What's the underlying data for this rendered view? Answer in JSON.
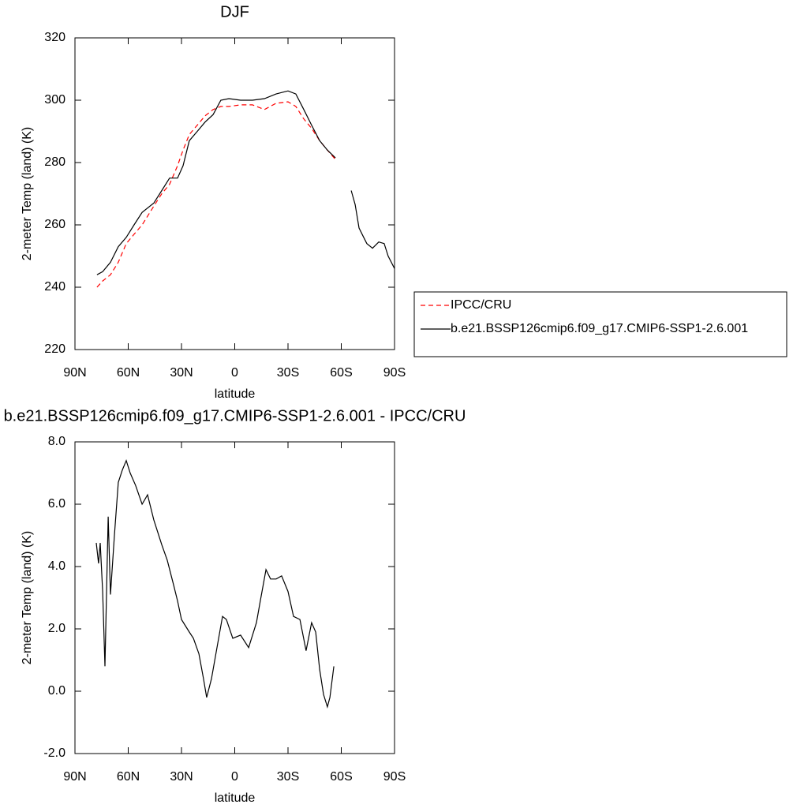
{
  "chart_data": [
    {
      "type": "line",
      "title": "DJF",
      "x_label": "latitude",
      "y_label": "2-meter Temp (land) (K)",
      "xlim": [
        90,
        -90
      ],
      "xticks": [
        {
          "value": 90,
          "label": "90N"
        },
        {
          "value": 60,
          "label": "60N"
        },
        {
          "value": 30,
          "label": "30N"
        },
        0,
        {
          "value": -30,
          "label": "30S"
        },
        {
          "value": -60,
          "label": "60S"
        },
        {
          "value": -90,
          "label": "90S"
        }
      ],
      "ylim": [
        220,
        320
      ],
      "yticks": [
        220,
        240,
        260,
        280,
        300,
        320
      ],
      "legend": "right",
      "x": [
        77.6,
        74.4,
        70,
        65.6,
        61.1,
        56.7,
        52.2,
        45.6,
        41.1,
        36.7,
        32.2,
        29.1,
        25.6,
        21.1,
        16.7,
        12.2,
        7.8,
        3.3,
        -3.3,
        -10,
        -16.7,
        -23.3,
        -30,
        -34.4,
        -38.9,
        -43.3,
        -47.8,
        -52.2,
        -56.7,
        -61,
        -65.6,
        -67.8,
        -70,
        -72.2,
        -74.4,
        -77.6,
        -81.1,
        -84.2,
        -86.4,
        -90
      ],
      "series": [
        {
          "name": "IPCC/CRU",
          "color": "#ff0000",
          "style": "dashed",
          "values": [
            240,
            242,
            244,
            248,
            254,
            257,
            260,
            266,
            270,
            273,
            279,
            284,
            289,
            292,
            295,
            297,
            298,
            298,
            298.5,
            298.5,
            297,
            299,
            299.5,
            298,
            294,
            291,
            287,
            284,
            281,
            null,
            null,
            null,
            null,
            null,
            null,
            null,
            null,
            null,
            null,
            null
          ]
        },
        {
          "name": "b.e21.BSSP126cmip6.f09_g17.CMIP6-SSP1-2.6.001",
          "color": "#000000",
          "style": "solid",
          "values": [
            244,
            245,
            248,
            253,
            256,
            260,
            264,
            267,
            271,
            275,
            275,
            279,
            287,
            290,
            293,
            295.4,
            300,
            300.5,
            300,
            300,
            300.5,
            302,
            303,
            302,
            297,
            292,
            287,
            284,
            281.5,
            null,
            271,
            266.5,
            259,
            256.5,
            254,
            252.5,
            254.5,
            254,
            250,
            246
          ]
        }
      ]
    },
    {
      "type": "line",
      "title": "b.e21.BSSP126cmip6.f09_g17.CMIP6-SSP1-2.6.001 - IPCC/CRU",
      "x_label": "latitude",
      "y_label": "2-meter Temp (land) (K)",
      "xlim": [
        90,
        -90
      ],
      "xticks": [
        {
          "value": 90,
          "label": "90N"
        },
        {
          "value": 60,
          "label": "60N"
        },
        {
          "value": 30,
          "label": "30N"
        },
        0,
        {
          "value": -30,
          "label": "30S"
        },
        {
          "value": -60,
          "label": "60S"
        },
        {
          "value": -90,
          "label": "90S"
        }
      ],
      "ylim": [
        -2,
        8
      ],
      "yticks": [
        {
          "value": -2,
          "label": "-2.0"
        },
        {
          "value": 0,
          "label": "0.0"
        },
        {
          "value": 2,
          "label": "2.0"
        },
        {
          "value": 4,
          "label": "4.0"
        },
        {
          "value": 6,
          "label": "6.0"
        },
        {
          "value": 8,
          "label": "8.0"
        }
      ],
      "x": [
        78,
        76.7,
        75.8,
        74.4,
        73.1,
        71.3,
        70,
        67.8,
        65.6,
        63.3,
        61.1,
        58.9,
        55.8,
        52.2,
        49.1,
        45.6,
        41.1,
        38,
        34.4,
        32.2,
        30,
        25.6,
        23.3,
        20.2,
        17.6,
        15.8,
        13.1,
        10,
        6.9,
        4.7,
        1.1,
        -3.3,
        -7.8,
        -12.2,
        -14.4,
        -17.6,
        -20.2,
        -23.3,
        -26.4,
        -30,
        -33.1,
        -36.7,
        -40.2,
        -43.3,
        -45.6,
        -47.8,
        -50,
        -52.2,
        -53.6,
        -55.8
      ],
      "series": [
        {
          "color": "#000000",
          "values": [
            4.76,
            4.1,
            4.76,
            3.2,
            0.8,
            5.6,
            3.1,
            5.0,
            6.7,
            7.1,
            7.4,
            7.0,
            6.6,
            6.0,
            6.3,
            5.5,
            4.7,
            4.2,
            3.4,
            2.9,
            2.3,
            1.9,
            1.7,
            1.2,
            0.4,
            -0.2,
            0.4,
            1.4,
            2.4,
            2.3,
            1.7,
            1.8,
            1.4,
            2.2,
            2.9,
            3.9,
            3.6,
            3.6,
            3.7,
            3.2,
            2.4,
            2.3,
            1.3,
            2.2,
            1.9,
            0.7,
            -0.1,
            -0.5,
            -0.2,
            0.8
          ]
        }
      ]
    }
  ]
}
